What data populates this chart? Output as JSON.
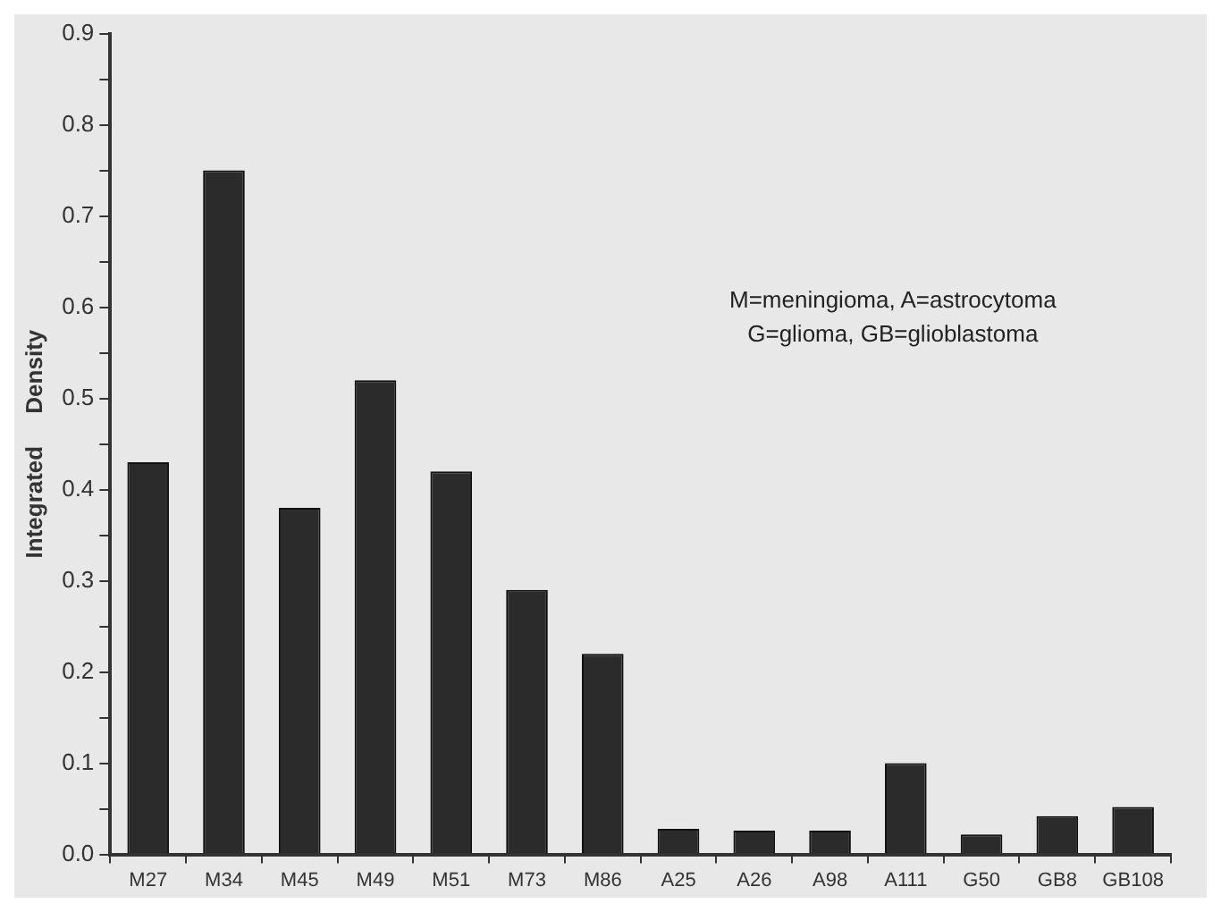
{
  "chart_data": {
    "type": "bar",
    "ylabel": "Integrated     Density",
    "categories": [
      "M27",
      "M34",
      "M45",
      "M49",
      "M51",
      "M73",
      "M86",
      "A25",
      "A26",
      "A98",
      "A111",
      "G50",
      "GB8",
      "GB108"
    ],
    "values": [
      0.43,
      0.75,
      0.38,
      0.52,
      0.42,
      0.29,
      0.22,
      0.028,
      0.026,
      0.026,
      0.1,
      0.022,
      0.042,
      0.052
    ],
    "color": "#2b2b2b",
    "ylim": [
      0,
      0.9
    ],
    "yticks": [
      {
        "value": 0,
        "label": "0.0"
      },
      {
        "value": 0.05,
        "label": null
      },
      0.1,
      {
        "value": 0.15,
        "label": null
      },
      0.2,
      {
        "value": 0.25,
        "label": null
      },
      0.3,
      {
        "value": 0.35,
        "label": null
      },
      0.4,
      {
        "value": 0.45,
        "label": null
      },
      0.5,
      {
        "value": 0.55,
        "label": null
      },
      0.6,
      {
        "value": 0.65,
        "label": null
      },
      0.7,
      {
        "value": 0.75,
        "label": null
      },
      0.8,
      {
        "value": 0.85,
        "label": null
      },
      0.9
    ],
    "grid": false,
    "legend": false,
    "annotations": [
      "M=meningioma, A=astrocytoma",
      "G=glioma, GB=glioblastoma"
    ]
  }
}
